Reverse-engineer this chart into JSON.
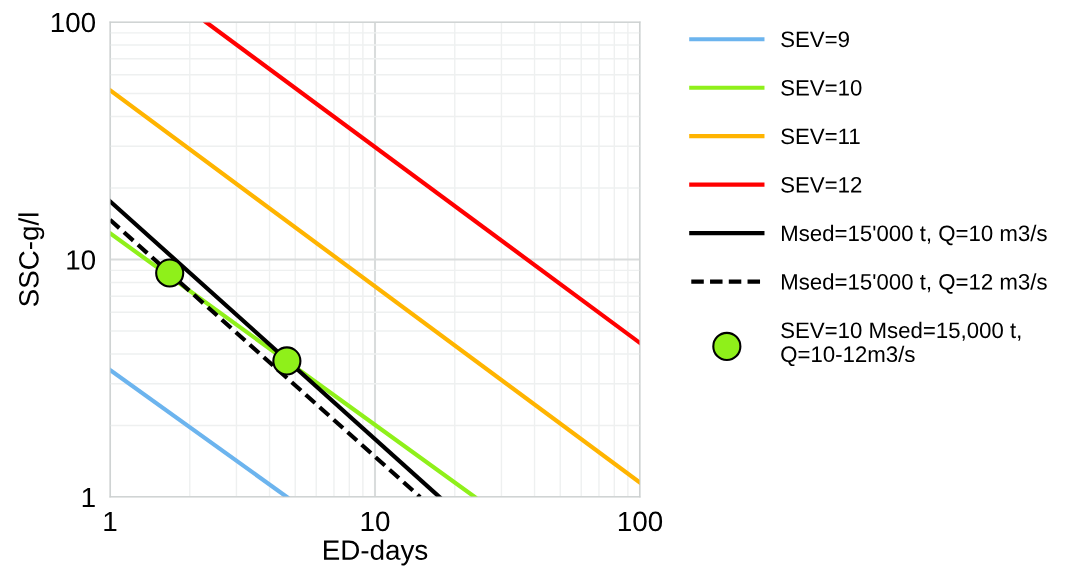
{
  "chart_data": {
    "type": "line",
    "xlabel": "ED-days",
    "ylabel": "SSC-g/l",
    "log": "xy",
    "grid": true,
    "legend": "right",
    "xlim": [
      1,
      100
    ],
    "ylim": [
      1,
      100
    ],
    "xticks": [
      1,
      10,
      100
    ],
    "yticks": [
      1,
      10,
      100
    ],
    "series": [
      {
        "name": "SEV=9",
        "color": "#6cb4ee",
        "x": [
          1,
          4.65
        ],
        "values": [
          3.43,
          1
        ]
      },
      {
        "name": "SEV=10",
        "color": "#8ff01a",
        "x": [
          1,
          23.8
        ],
        "values": [
          12.9,
          1
        ]
      },
      {
        "name": "SEV=11",
        "color": "#ffb400",
        "x": [
          1,
          100
        ],
        "values": [
          51.6,
          1.15
        ]
      },
      {
        "name": "SEV=12",
        "color": "#ff0000",
        "x": [
          2.3,
          100
        ],
        "values": [
          100,
          4.45
        ]
      },
      {
        "name": "Msed=15'000 t, Q=10 m3/s",
        "color": "#000000",
        "x": [
          1,
          17.5
        ],
        "values": [
          17.6,
          1
        ]
      },
      {
        "name": "Msed=15'000 t, Q=12 m3/s",
        "color": "#000000",
        "line_style": "dashed",
        "x": [
          1,
          14.8
        ],
        "values": [
          14.7,
          1
        ]
      },
      {
        "name": "SEV=10 Msed=15,000 t,\nQ=10-12m3/s",
        "type": "scatter",
        "marker": "circle",
        "color": "#8ff01a",
        "x": [
          1.68,
          4.65
        ],
        "values": [
          8.77,
          3.74
        ]
      }
    ]
  }
}
